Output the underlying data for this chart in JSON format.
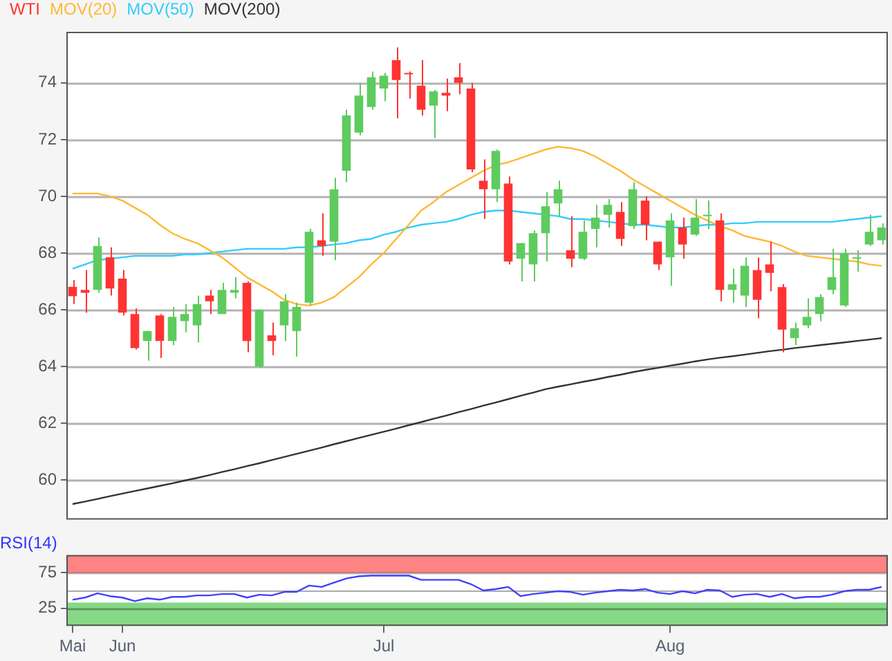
{
  "chart_data": [
    {
      "type": "candlestick",
      "categories": [
        null,
        null,
        null,
        null,
        null,
        null,
        null,
        null,
        null,
        null,
        null,
        null,
        null,
        null,
        null,
        null,
        null,
        null,
        null,
        null,
        null,
        null,
        null,
        null,
        null,
        null,
        null,
        null,
        null,
        null,
        null,
        null,
        null,
        null,
        null,
        null,
        null,
        null,
        null,
        null,
        null,
        null,
        null,
        null,
        null,
        null,
        null,
        null,
        null,
        null,
        null,
        null,
        null,
        null,
        null,
        null,
        null,
        null,
        null,
        null,
        null,
        null,
        null,
        null,
        null,
        null
      ],
      "series": [
        {
          "name": "WTI",
          "type": "candlestick",
          "color": "#ff3333",
          "ohlc": [
            [
              66.81,
              67.05,
              66.2,
              66.48
            ],
            [
              66.7,
              67.4,
              65.9,
              66.6
            ],
            [
              66.7,
              68.55,
              66.6,
              68.25
            ],
            [
              67.85,
              68.2,
              66.5,
              66.75
            ],
            [
              67.1,
              67.4,
              65.8,
              65.9
            ],
            [
              65.85,
              66.05,
              64.6,
              64.65
            ],
            [
              64.9,
              65.25,
              64.2,
              65.25
            ],
            [
              65.8,
              65.85,
              64.3,
              64.9
            ],
            [
              64.9,
              66.1,
              64.75,
              65.75
            ],
            [
              65.6,
              66.2,
              65.2,
              65.85
            ],
            [
              65.45,
              66.5,
              64.85,
              66.2
            ],
            [
              66.5,
              66.7,
              65.85,
              66.3
            ],
            [
              65.85,
              66.95,
              65.85,
              66.7
            ],
            [
              66.6,
              67.15,
              66.4,
              66.7
            ],
            [
              66.95,
              67.0,
              64.5,
              64.9
            ],
            [
              64.0,
              66.0,
              63.95,
              66.0
            ],
            [
              65.1,
              65.55,
              64.4,
              64.9
            ],
            [
              65.45,
              66.55,
              64.9,
              66.3
            ],
            [
              65.25,
              66.25,
              64.35,
              66.1
            ],
            [
              66.25,
              68.85,
              66.15,
              68.75
            ],
            [
              68.45,
              69.4,
              67.9,
              68.25
            ],
            [
              68.4,
              70.65,
              67.75,
              70.25
            ],
            [
              70.9,
              73.05,
              70.5,
              72.85
            ],
            [
              72.25,
              74.0,
              72.15,
              73.55
            ],
            [
              73.15,
              74.4,
              73.05,
              74.2
            ],
            [
              73.8,
              74.35,
              73.35,
              74.25
            ],
            [
              74.8,
              75.25,
              72.75,
              74.1
            ],
            [
              74.35,
              74.4,
              73.45,
              74.3
            ],
            [
              73.9,
              74.8,
              72.85,
              73.05
            ],
            [
              73.2,
              73.75,
              72.05,
              73.7
            ],
            [
              73.65,
              74.15,
              73.0,
              73.55
            ],
            [
              74.2,
              74.7,
              73.6,
              74.0
            ],
            [
              73.8,
              74.0,
              70.85,
              70.95
            ],
            [
              70.55,
              71.3,
              69.2,
              70.25
            ],
            [
              70.25,
              71.65,
              69.8,
              71.6
            ],
            [
              70.45,
              70.7,
              67.6,
              67.7
            ],
            [
              67.8,
              68.35,
              67.0,
              68.35
            ],
            [
              67.6,
              68.8,
              67.0,
              68.7
            ],
            [
              68.7,
              70.15,
              67.7,
              69.65
            ],
            [
              69.75,
              70.55,
              69.3,
              70.25
            ],
            [
              68.1,
              69.3,
              67.5,
              67.8
            ],
            [
              67.8,
              69.15,
              67.75,
              68.75
            ],
            [
              68.85,
              69.7,
              68.2,
              69.25
            ],
            [
              69.35,
              69.9,
              68.9,
              69.7
            ],
            [
              69.45,
              69.8,
              68.25,
              68.5
            ],
            [
              68.95,
              70.5,
              68.85,
              70.25
            ],
            [
              69.85,
              70.0,
              68.45,
              69.0
            ],
            [
              68.4,
              68.4,
              67.4,
              67.6
            ],
            [
              67.85,
              69.4,
              66.85,
              69.15
            ],
            [
              68.9,
              69.25,
              67.8,
              68.3
            ],
            [
              68.65,
              69.9,
              68.6,
              69.25
            ],
            [
              69.3,
              69.85,
              68.85,
              69.35
            ],
            [
              69.15,
              69.4,
              66.3,
              66.7
            ],
            [
              66.7,
              67.45,
              66.25,
              66.9
            ],
            [
              66.5,
              67.85,
              66.1,
              67.55
            ],
            [
              67.4,
              67.85,
              65.7,
              66.35
            ],
            [
              67.6,
              68.4,
              66.65,
              67.3
            ],
            [
              66.8,
              66.9,
              64.5,
              65.3
            ],
            [
              65.0,
              65.55,
              64.75,
              65.35
            ],
            [
              65.45,
              66.4,
              65.35,
              65.75
            ],
            [
              65.85,
              66.55,
              65.6,
              66.45
            ],
            [
              66.7,
              68.15,
              66.55,
              67.15
            ],
            [
              66.15,
              68.15,
              66.1,
              68.0
            ],
            [
              67.8,
              68.1,
              67.35,
              67.85
            ],
            [
              68.3,
              69.35,
              68.25,
              68.75
            ],
            [
              68.45,
              69.05,
              68.3,
              68.9
            ]
          ],
          "colors": [
            "#ff3333",
            "#ff3333",
            "#5ecb5e",
            "#ff3333",
            "#ff3333",
            "#ff3333",
            "#5ecb5e",
            "#ff3333",
            "#5ecb5e",
            "#5ecb5e",
            "#5ecb5e",
            "#ff3333",
            "#5ecb5e",
            "#5ecb5e",
            "#ff3333",
            "#5ecb5e",
            "#ff3333",
            "#5ecb5e",
            "#5ecb5e",
            "#5ecb5e",
            "#ff3333",
            "#5ecb5e",
            "#5ecb5e",
            "#5ecb5e",
            "#5ecb5e",
            "#5ecb5e",
            "#ff3333",
            "#ff3333",
            "#ff3333",
            "#5ecb5e",
            "#ff3333",
            "#ff3333",
            "#ff3333",
            "#ff3333",
            "#5ecb5e",
            "#ff3333",
            "#5ecb5e",
            "#5ecb5e",
            "#5ecb5e",
            "#5ecb5e",
            "#ff3333",
            "#5ecb5e",
            "#5ecb5e",
            "#5ecb5e",
            "#ff3333",
            "#5ecb5e",
            "#ff3333",
            "#ff3333",
            "#5ecb5e",
            "#ff3333",
            "#5ecb5e",
            "#5ecb5e",
            "#ff3333",
            "#5ecb5e",
            "#5ecb5e",
            "#ff3333",
            "#ff3333",
            "#ff3333",
            "#5ecb5e",
            "#5ecb5e",
            "#5ecb5e",
            "#5ecb5e",
            "#5ecb5e",
            "#5ecb5e",
            "#5ecb5e",
            "#5ecb5e"
          ]
        },
        {
          "name": "MOV(20)",
          "type": "line",
          "color": "#ffb833",
          "values": [
            70.1,
            70.1,
            70.1,
            70.0,
            69.85,
            69.6,
            69.35,
            69.0,
            68.7,
            68.5,
            68.35,
            68.1,
            67.85,
            67.5,
            67.15,
            66.9,
            66.65,
            66.35,
            66.2,
            66.15,
            66.25,
            66.45,
            66.8,
            67.15,
            67.6,
            68.0,
            68.5,
            69.0,
            69.5,
            69.8,
            70.15,
            70.4,
            70.65,
            70.9,
            71.1,
            71.2,
            71.35,
            71.5,
            71.65,
            71.75,
            71.7,
            71.6,
            71.4,
            71.15,
            70.9,
            70.6,
            70.35,
            70.1,
            69.85,
            69.6,
            69.35,
            69.15,
            68.95,
            68.8,
            68.6,
            68.5,
            68.4,
            68.25,
            68.05,
            67.9,
            67.85,
            67.8,
            67.75,
            67.7,
            67.6,
            67.55
          ]
        },
        {
          "name": "MOV(50)",
          "type": "line",
          "color": "#33ccff",
          "values": [
            67.45,
            67.6,
            67.75,
            67.8,
            67.85,
            67.9,
            67.9,
            67.9,
            67.9,
            67.95,
            67.95,
            68.0,
            68.05,
            68.1,
            68.15,
            68.15,
            68.15,
            68.15,
            68.2,
            68.2,
            68.25,
            68.3,
            68.35,
            68.45,
            68.5,
            68.65,
            68.75,
            68.9,
            69.0,
            69.05,
            69.1,
            69.2,
            69.35,
            69.45,
            69.5,
            69.5,
            69.45,
            69.4,
            69.35,
            69.3,
            69.2,
            69.2,
            69.15,
            69.1,
            69.05,
            69.0,
            69.0,
            68.95,
            68.9,
            68.9,
            68.95,
            69.0,
            69.0,
            69.05,
            69.05,
            69.1,
            69.1,
            69.1,
            69.1,
            69.1,
            69.1,
            69.1,
            69.15,
            69.2,
            69.25,
            69.3
          ]
        },
        {
          "name": "MOV(200)",
          "type": "line",
          "color": "#333333",
          "values": [
            59.15,
            59.24,
            59.33,
            59.43,
            59.52,
            59.61,
            59.7,
            59.79,
            59.88,
            59.98,
            60.07,
            60.17,
            60.28,
            60.38,
            60.49,
            60.59,
            60.7,
            60.81,
            60.92,
            61.03,
            61.14,
            61.26,
            61.37,
            61.48,
            61.59,
            61.7,
            61.81,
            61.93,
            62.04,
            62.16,
            62.27,
            62.39,
            62.5,
            62.62,
            62.73,
            62.85,
            62.97,
            63.08,
            63.2,
            63.29,
            63.37,
            63.46,
            63.54,
            63.63,
            63.71,
            63.8,
            63.88,
            63.95,
            64.03,
            64.1,
            64.18,
            64.25,
            64.31,
            64.36,
            64.42,
            64.48,
            64.54,
            64.59,
            64.65,
            64.7,
            64.75,
            64.8,
            64.85,
            64.9,
            64.95,
            65.0
          ]
        }
      ],
      "ylim": [
        58.6,
        75.8
      ],
      "yticks": [
        60,
        62,
        64,
        66,
        68,
        70,
        72,
        74
      ],
      "grid": "y",
      "legend": "top left",
      "marker": "none"
    },
    {
      "type": "line",
      "title": "RSI(14)",
      "categories": [
        "Mai",
        null,
        null,
        null,
        "Jun",
        null,
        null,
        null,
        null,
        null,
        null,
        null,
        null,
        null,
        null,
        null,
        null,
        null,
        null,
        null,
        null,
        null,
        null,
        null,
        null,
        "Jul",
        null,
        null,
        null,
        null,
        null,
        null,
        null,
        null,
        null,
        null,
        null,
        null,
        null,
        null,
        null,
        null,
        null,
        null,
        null,
        null,
        null,
        null,
        "Aug",
        null,
        null,
        null,
        null,
        null,
        null,
        null,
        null,
        null,
        null,
        null,
        null,
        null,
        null,
        null,
        null,
        null
      ],
      "color": "#4040ff",
      "values": [
        37,
        40,
        46,
        42,
        40,
        35,
        39,
        37,
        41,
        41,
        43,
        43,
        45,
        45,
        40,
        44,
        43,
        48,
        48,
        57,
        55,
        61,
        67,
        70,
        71,
        71,
        71,
        71,
        65,
        65,
        65,
        65,
        59,
        50,
        52,
        55,
        42,
        45,
        47,
        49,
        48,
        44,
        47,
        49,
        51,
        50,
        52,
        47,
        45,
        49,
        46,
        51,
        50,
        41,
        44,
        45,
        41,
        45,
        39,
        41,
        41,
        44,
        49,
        51,
        51,
        55
      ],
      "ylim": [
        0,
        100
      ],
      "yticks": [
        25,
        75
      ],
      "grid": "y",
      "marker": "none",
      "bands": [
        {
          "axis": "y",
          "from": 75,
          "to": 100,
          "color": "#ff8484"
        },
        {
          "axis": "y",
          "from": 0,
          "to": 33,
          "color": "#86d886"
        }
      ],
      "ref_lines": [
        {
          "axis": "y",
          "value": 50,
          "color": "#aaaaaa"
        }
      ]
    }
  ]
}
